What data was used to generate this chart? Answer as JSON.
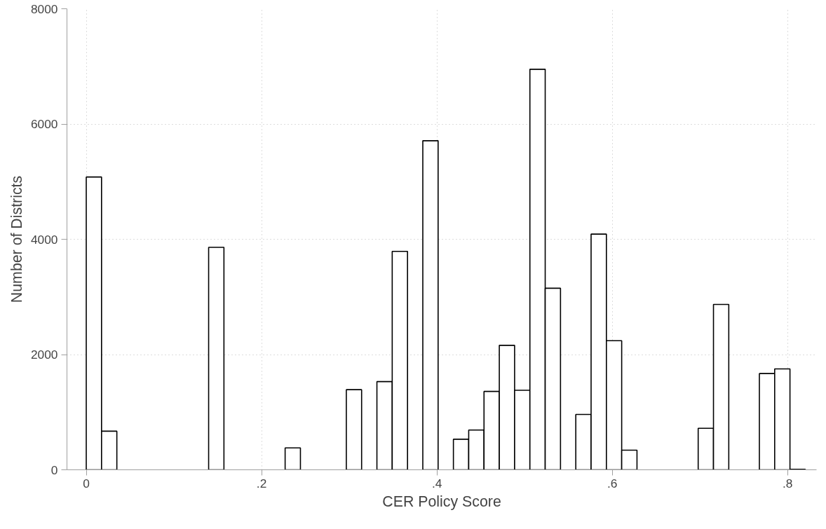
{
  "chart_data": {
    "type": "histogram",
    "xlabel": "CER Policy Score",
    "ylabel": "Number of Districts",
    "bins": [
      0,
      0.01745,
      0.0349,
      0.05235,
      0.0698,
      0.08725,
      0.1047,
      0.12215,
      0.1396,
      0.15705,
      0.1745,
      0.19195,
      0.2094,
      0.22685,
      0.2443,
      0.26175,
      0.2792,
      0.29665,
      0.3141,
      0.33155,
      0.349,
      0.36645,
      0.3839,
      0.40135,
      0.4188,
      0.43625,
      0.4537,
      0.47115,
      0.4886,
      0.50605,
      0.5235,
      0.54095,
      0.5584,
      0.57585,
      0.5933,
      0.61075,
      0.6282,
      0.64565,
      0.6631,
      0.68055,
      0.698,
      0.71545,
      0.7329,
      0.75035,
      0.7678,
      0.78525,
      0.8027,
      0.82015
    ],
    "values": [
      5080,
      670,
      0,
      0,
      0,
      0,
      0,
      0,
      3860,
      0,
      0,
      0,
      0,
      380,
      0,
      0,
      0,
      1390,
      0,
      1530,
      3790,
      0,
      5710,
      0,
      530,
      690,
      1360,
      2160,
      1380,
      6950,
      3150,
      0,
      960,
      4090,
      2240,
      340,
      0,
      0,
      0,
      0,
      720,
      2870,
      0,
      0,
      1670,
      1750,
      10
    ],
    "color": "#ffffff",
    "xlim": [
      -0.022,
      0.833
    ],
    "ylim": [
      0,
      8000
    ],
    "xticks": [
      0,
      {
        "value": 0.2,
        "label": ".2"
      },
      {
        "value": 0.4,
        "label": ".4"
      },
      {
        "value": 0.6,
        "label": ".6"
      },
      {
        "value": 0.8,
        "label": ".8"
      }
    ],
    "yticks": [
      0,
      2000,
      4000,
      6000,
      8000
    ],
    "grid": true
  }
}
